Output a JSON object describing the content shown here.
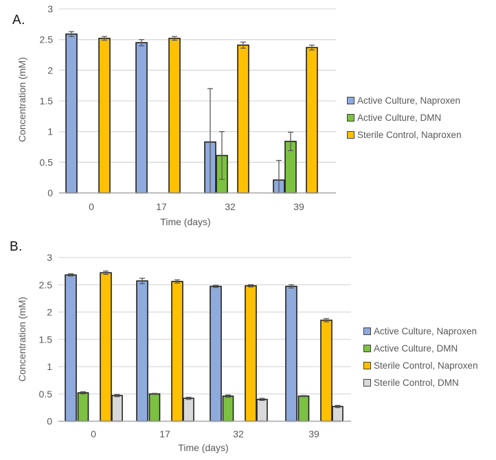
{
  "panels": [
    {
      "label": "A."
    },
    {
      "label": "B."
    }
  ],
  "chart_data": [
    {
      "type": "bar",
      "title": "",
      "xlabel": "Time (days)",
      "ylabel": "Concentration (mM)",
      "categories": [
        "0",
        "17",
        "32",
        "39"
      ],
      "ylim": [
        0,
        3
      ],
      "yticks": [
        0,
        0.5,
        1,
        1.5,
        2,
        2.5,
        3
      ],
      "grid": true,
      "legend_position": "right",
      "series": [
        {
          "name": "Active Culture, Naproxen",
          "color": "#8FAADC",
          "values": [
            2.59,
            2.45,
            0.83,
            0.21
          ],
          "errors": [
            0.04,
            0.05,
            0.87,
            0.32
          ]
        },
        {
          "name": "Active Culture, DMN",
          "color": "#7CC142",
          "values": [
            0,
            0,
            0.61,
            0.84
          ],
          "errors": [
            0,
            0,
            0.39,
            0.15
          ]
        },
        {
          "name": "Sterile Control, Naproxen",
          "color": "#FFC000",
          "values": [
            2.52,
            2.52,
            2.41,
            2.37
          ],
          "errors": [
            0.03,
            0.03,
            0.05,
            0.04
          ]
        }
      ]
    },
    {
      "type": "bar",
      "title": "",
      "xlabel": "Time (days)",
      "ylabel": "Concentration (mM)",
      "categories": [
        "0",
        "17",
        "32",
        "39"
      ],
      "ylim": [
        0,
        3
      ],
      "yticks": [
        0,
        0.5,
        1,
        1.5,
        2,
        2.5,
        3
      ],
      "grid": true,
      "legend_position": "right",
      "series": [
        {
          "name": "Active Culture, Naproxen",
          "color": "#8FAADC",
          "values": [
            2.68,
            2.57,
            2.47,
            2.47
          ],
          "errors": [
            0.02,
            0.05,
            0.02,
            0.03
          ]
        },
        {
          "name": "Active Culture, DMN",
          "color": "#7CC142",
          "values": [
            0.52,
            0.5,
            0.46,
            0.46
          ],
          "errors": [
            0.02,
            0.01,
            0.02,
            0.01
          ]
        },
        {
          "name": "Sterile Control, Naproxen",
          "color": "#FFC000",
          "values": [
            2.72,
            2.56,
            2.48,
            1.85
          ],
          "errors": [
            0.03,
            0.03,
            0.02,
            0.03
          ]
        },
        {
          "name": "Sterile Control, DMN",
          "color": "#D9D9D9",
          "values": [
            0.47,
            0.42,
            0.4,
            0.27
          ],
          "errors": [
            0.02,
            0.02,
            0.02,
            0.02
          ]
        }
      ]
    }
  ],
  "style": {
    "bar_border": "#1F1F1F",
    "error_bar": "#595959",
    "gridline": "#D9D9D9",
    "axis_line": "#A6A6A6",
    "tick_text": "#595959",
    "panel_label_color": "#111111"
  }
}
